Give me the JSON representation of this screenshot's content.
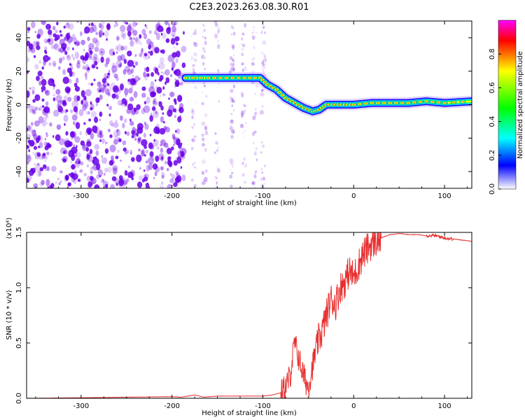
{
  "figure": {
    "title": "C2E3.2023.263.08.30.R01"
  },
  "colors": {
    "speckle": "#6a00e8",
    "track_core": "#ff1a1a",
    "snr_line": "#e83030",
    "colorbar_stops": [
      "#ff00ff",
      "#ff0000",
      "#ffff00",
      "#00ff00",
      "#00ffff",
      "#0000ff",
      "#ffffff"
    ]
  },
  "chart_data": [
    {
      "type": "heatmap",
      "xlabel": "Height of straight line (km)",
      "ylabel": "Frequency (Hz)",
      "xlim": [
        -360,
        130
      ],
      "ylim": [
        -50,
        50
      ],
      "x_ticks": [
        -300,
        -200,
        -100,
        0,
        100
      ],
      "y_ticks": [
        -40,
        -20,
        0,
        20,
        40
      ],
      "colorbar": {
        "label": "Normalized spectral amplitude",
        "range": [
          0,
          1
        ],
        "ticks": [
          "0.0",
          "0.2",
          "0.4",
          "0.6",
          "0.8"
        ]
      },
      "noise_regions": [
        {
          "x_from": -360,
          "x_to": -187,
          "density": "dense"
        },
        {
          "x_from": -187,
          "x_to": -95,
          "density": "sparse"
        }
      ],
      "signal_track": {
        "x": [
          -185,
          -160,
          -140,
          -120,
          -103,
          -95,
          -85,
          -75,
          -65,
          -55,
          -45,
          -38,
          -30,
          -20,
          -10,
          0,
          20,
          40,
          60,
          80,
          100,
          130
        ],
        "y": [
          16,
          16,
          16,
          16,
          16,
          12,
          9,
          4,
          1,
          -2,
          -4,
          -3,
          0,
          0,
          0,
          0,
          1,
          1,
          1,
          2,
          1,
          2
        ]
      }
    },
    {
      "type": "line",
      "xlabel": "Height of straight line (km)",
      "ylabel": "SNR (10 * v/v)",
      "y_multiplier": "(x10⁴)",
      "xlim": [
        -360,
        130
      ],
      "ylim": [
        0,
        1.5
      ],
      "x_ticks": [
        -300,
        -200,
        -100,
        0,
        100
      ],
      "y_ticks": [
        "0.0",
        "0.5",
        "1.0",
        "1.5"
      ],
      "series": [
        {
          "x": [
            -360,
            -300,
            -250,
            -200,
            -190,
            -175,
            -165,
            -150,
            -120,
            -100,
            -90,
            -80,
            -75,
            -70,
            -65,
            -60,
            -55,
            -50,
            -45,
            -40,
            -35,
            -30,
            -25,
            -20,
            -15,
            -10,
            -5,
            0,
            5,
            10,
            15,
            20,
            30,
            40,
            50,
            60,
            70,
            80,
            90,
            100,
            110,
            120,
            130
          ],
          "y": [
            0.0,
            0.005,
            0.01,
            0.015,
            0.01,
            0.03,
            0.01,
            0.02,
            0.02,
            0.02,
            0.03,
            0.05,
            0.1,
            0.2,
            0.5,
            0.35,
            0.2,
            0.1,
            0.3,
            0.5,
            0.6,
            0.75,
            0.9,
            0.85,
            1.0,
            1.05,
            1.15,
            1.1,
            1.2,
            1.3,
            1.35,
            1.4,
            1.45,
            1.48,
            1.49,
            1.48,
            1.48,
            1.47,
            1.47,
            1.45,
            1.44,
            1.43,
            1.42
          ]
        }
      ]
    }
  ]
}
